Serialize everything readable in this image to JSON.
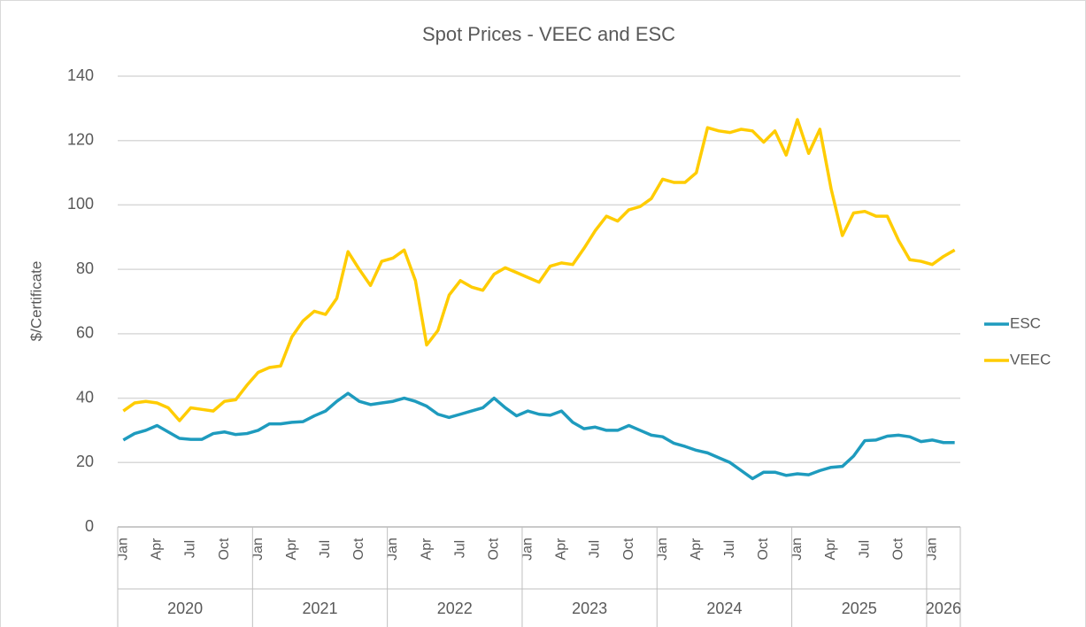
{
  "chart_data": {
    "type": "line",
    "title": "Spot Prices - VEEC and ESC",
    "y_label": "$/Certificate",
    "categories": [
      "Jan",
      null,
      null,
      "Apr",
      null,
      null,
      "Jul",
      null,
      null,
      "Oct",
      null,
      null,
      "Jan",
      null,
      null,
      "Apr",
      null,
      null,
      "Jul",
      null,
      null,
      "Oct",
      null,
      null,
      "Jan",
      null,
      null,
      "Apr",
      null,
      null,
      "Jul",
      null,
      null,
      "Oct",
      null,
      null,
      "Jan",
      null,
      null,
      "Apr",
      null,
      null,
      "Jul",
      null,
      null,
      "Oct",
      null,
      null,
      "Jan",
      null,
      null,
      "Apr",
      null,
      null,
      "Jul",
      null,
      null,
      "Oct",
      null,
      null,
      "Jan",
      null,
      null,
      "Apr",
      null,
      null,
      "Jul",
      null,
      null,
      "Oct",
      null,
      null,
      "Jan",
      null,
      null
    ],
    "x_groups": [
      {
        "label": "2020",
        "count": 12
      },
      {
        "label": "2021",
        "count": 12
      },
      {
        "label": "2022",
        "count": 12
      },
      {
        "label": "2023",
        "count": 12
      },
      {
        "label": "2024",
        "count": 12
      },
      {
        "label": "2025",
        "count": 12
      },
      {
        "label": "2026",
        "count": 3
      }
    ],
    "series": [
      {
        "name": "ESC",
        "color": "#1E9BBE",
        "values": [
          27,
          29,
          30,
          31.5,
          29.5,
          27.5,
          27.2,
          27.2,
          29,
          29.5,
          28.7,
          29,
          30,
          32,
          32,
          32.5,
          32.7,
          34.5,
          36,
          39,
          41.5,
          39,
          38,
          38.5,
          39,
          40,
          39,
          37.5,
          35,
          34,
          35,
          36,
          37,
          40,
          37,
          34.5,
          36,
          35,
          34.7,
          36,
          32.5,
          30.5,
          31,
          30,
          30,
          31.5,
          30,
          28.5,
          28,
          26,
          25,
          23.8,
          23,
          21.5,
          20,
          17.5,
          15,
          17,
          17,
          16,
          16.5,
          16.2,
          17.5,
          18.5,
          18.8,
          22,
          26.8,
          27,
          28.2,
          28.5,
          28,
          26.5,
          27,
          26.2,
          26.2
        ]
      },
      {
        "name": "VEEC",
        "color": "#FFCC00",
        "values": [
          36,
          38.5,
          39,
          38.5,
          37,
          33,
          37,
          36.5,
          36,
          39,
          39.5,
          44,
          48,
          49.5,
          50,
          59,
          64,
          67,
          66,
          71,
          85.5,
          80,
          75,
          82.5,
          83.5,
          86,
          76.5,
          56.5,
          61,
          72,
          76.5,
          74.5,
          73.5,
          78.5,
          80.5,
          79,
          77.5,
          76,
          81,
          82,
          81.5,
          86.5,
          92,
          96.5,
          95,
          98.5,
          99.5,
          102,
          108,
          107,
          107,
          110,
          124,
          123,
          122.5,
          123.5,
          123,
          119.5,
          123,
          115.5,
          126.5,
          116,
          123.5,
          105,
          90.5,
          97.5,
          98,
          96.5,
          96.5,
          89,
          83,
          82.5,
          81.5,
          84,
          86
        ]
      }
    ],
    "ylim": [
      0,
      140
    ],
    "yticks": [
      0,
      20,
      40,
      60,
      80,
      100,
      120,
      140
    ],
    "grid": true,
    "legend": "right"
  }
}
